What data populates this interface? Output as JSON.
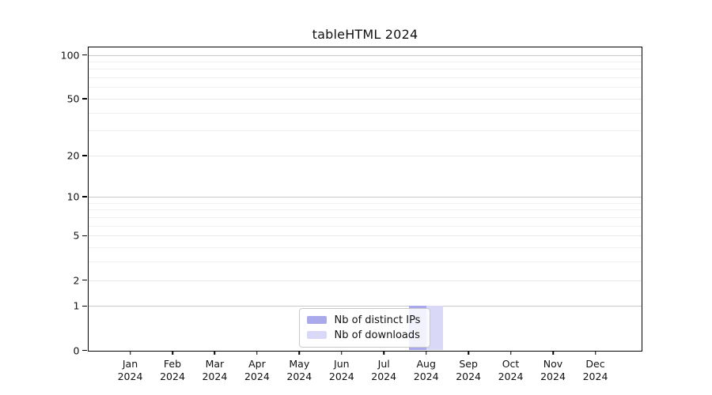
{
  "chart_data": {
    "type": "bar",
    "title": "tableHTML 2024",
    "x_categories": [
      "Jan",
      "Feb",
      "Mar",
      "Apr",
      "May",
      "Jun",
      "Jul",
      "Aug",
      "Sep",
      "Oct",
      "Nov",
      "Dec"
    ],
    "x_year": "2024",
    "series": [
      {
        "name": "Nb of distinct IPs",
        "color": "#a9a9ec",
        "values": [
          0,
          0,
          0,
          0,
          0,
          0,
          0,
          1,
          0,
          0,
          0,
          0
        ]
      },
      {
        "name": "Nb of downloads",
        "color": "#d9d9f7",
        "values": [
          0,
          0,
          0,
          0,
          0,
          0,
          0,
          1,
          0,
          0,
          0,
          0
        ]
      }
    ],
    "yscale": "log1p",
    "ylim": [
      0,
      100
    ],
    "y_tick_values": [
      0,
      1,
      2,
      5,
      10,
      20,
      50,
      100
    ],
    "y_gridlines": {
      "major": [
        1,
        10,
        100
      ],
      "labeled": [
        2,
        5,
        20,
        50
      ],
      "minor": [
        3,
        4,
        6,
        7,
        8,
        9,
        30,
        40,
        60,
        70,
        80,
        90
      ]
    },
    "grid_colors": {
      "major": "#c8c8c8",
      "labeled": "#e8e8e8",
      "minor": "#efefef"
    },
    "axis_color": "#000000",
    "text_color": "#111111",
    "legend_position": "inside-bottom-center",
    "grid": "on"
  }
}
